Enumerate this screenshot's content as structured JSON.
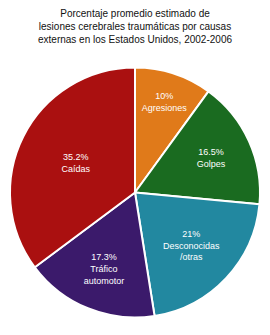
{
  "chart_data": {
    "type": "pie",
    "title": "Porcentaje promedio estimado de\nlesiones cerebrales traumáticas por causas\nexternas en los Estados Unidos, 2002-2006",
    "categories": [
      "Agresiones",
      "Golpes",
      "Desconocidas\n/otras",
      "Tráfico\nautomotor",
      "Caídas"
    ],
    "values": [
      10.0,
      16.5,
      21.0,
      17.3,
      35.2
    ],
    "value_labels": [
      "10%",
      "16.5%",
      "21%",
      "17.3%",
      "35.2%"
    ],
    "colors": [
      "#E07A1A",
      "#1A6B20",
      "#2288A0",
      "#3B1A6B",
      "#AA1010"
    ],
    "data_labels": true
  }
}
